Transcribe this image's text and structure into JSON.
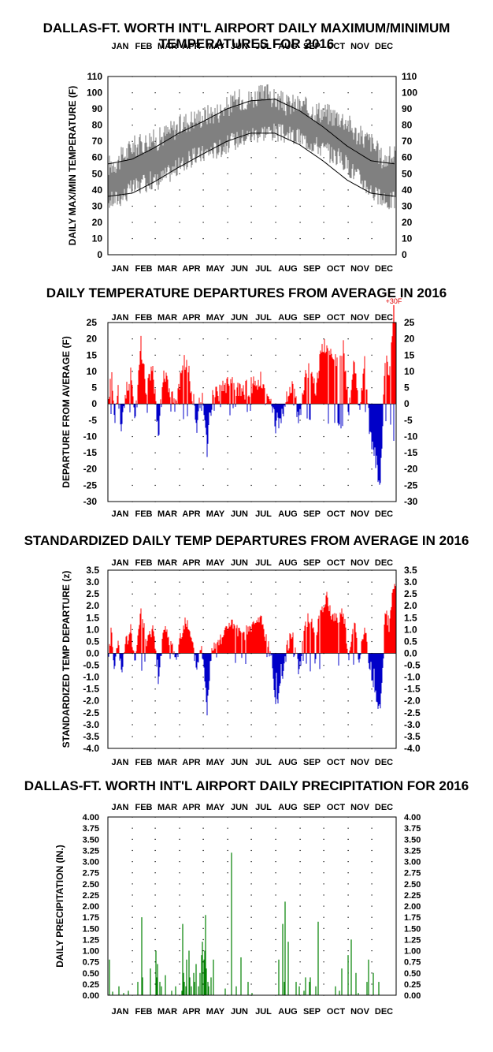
{
  "colors": {
    "max_min_band": "#808080",
    "normals_line": "#000000",
    "above_average": "#ff0000",
    "below_average": "#0000c8",
    "precip": "#008000",
    "grid_dots": "#000000"
  },
  "chart_data": [
    {
      "id": "temps",
      "type": "area",
      "title": "DALLAS-FT. WORTH INT'L AIRPORT DAILY MAXIMUM/MINIMUM",
      "subtitle": "TEMPERATURES FOR 2016",
      "ylabel": "DAILY MAX/MIN TEMPERATURE (F)",
      "months": [
        "JAN",
        "FEB",
        "MAR",
        "APR",
        "MAY",
        "JUN",
        "JUL",
        "AUG",
        "SEP",
        "OCT",
        "NOV",
        "DEC"
      ],
      "ylim": [
        0,
        110
      ],
      "yticks": [
        "110",
        "100",
        "90",
        "80",
        "70",
        "60",
        "50",
        "40",
        "30",
        "20",
        "10",
        "0"
      ],
      "grid": "dotted",
      "series": [
        {
          "kind": "daily_max_min_band",
          "color": "gray",
          "max_anchors": [
            [
              1,
              55
            ],
            [
              15,
              58
            ],
            [
              25,
              63
            ],
            [
              32,
              67
            ],
            [
              45,
              68
            ],
            [
              55,
              72
            ],
            [
              62,
              70
            ],
            [
              75,
              75
            ],
            [
              90,
              79
            ],
            [
              100,
              82
            ],
            [
              110,
              84
            ],
            [
              120,
              85
            ],
            [
              130,
              87
            ],
            [
              140,
              88
            ],
            [
              152,
              91
            ],
            [
              160,
              94
            ],
            [
              170,
              96
            ],
            [
              182,
              96
            ],
            [
              190,
              98
            ],
            [
              200,
              98
            ],
            [
              206,
              102
            ],
            [
              210,
              96
            ],
            [
              220,
              95
            ],
            [
              228,
              92
            ],
            [
              235,
              93
            ],
            [
              245,
              92
            ],
            [
              255,
              90
            ],
            [
              265,
              89
            ],
            [
              275,
              88
            ],
            [
              285,
              86
            ],
            [
              295,
              85
            ],
            [
              305,
              82
            ],
            [
              315,
              75
            ],
            [
              325,
              72
            ],
            [
              335,
              70
            ],
            [
              345,
              62
            ],
            [
              352,
              58
            ],
            [
              358,
              60
            ],
            [
              366,
              62
            ]
          ],
          "min_anchors": [
            [
              1,
              33
            ],
            [
              15,
              35
            ],
            [
              25,
              38
            ],
            [
              32,
              41
            ],
            [
              45,
              43
            ],
            [
              55,
              46
            ],
            [
              62,
              45
            ],
            [
              75,
              49
            ],
            [
              90,
              54
            ],
            [
              100,
              57
            ],
            [
              110,
              60
            ],
            [
              120,
              62
            ],
            [
              130,
              64
            ],
            [
              140,
              65
            ],
            [
              152,
              68
            ],
            [
              160,
              70
            ],
            [
              170,
              72
            ],
            [
              182,
              74
            ],
            [
              190,
              75
            ],
            [
              200,
              76
            ],
            [
              210,
              76
            ],
            [
              220,
              75
            ],
            [
              228,
              74
            ],
            [
              235,
              73
            ],
            [
              245,
              72
            ],
            [
              255,
              70
            ],
            [
              265,
              68
            ],
            [
              275,
              65
            ],
            [
              285,
              62
            ],
            [
              295,
              60
            ],
            [
              305,
              55
            ],
            [
              315,
              50
            ],
            [
              325,
              45
            ],
            [
              335,
              40
            ],
            [
              345,
              35
            ],
            [
              352,
              32
            ],
            [
              358,
              33
            ],
            [
              366,
              34
            ]
          ]
        },
        {
          "kind": "normal_high_line",
          "anchors": [
            [
              1,
              56
            ],
            [
              32,
              59
            ],
            [
              60,
              66
            ],
            [
              91,
              75
            ],
            [
              121,
              82
            ],
            [
              152,
              90
            ],
            [
              182,
              95
            ],
            [
              213,
              96
            ],
            [
              244,
              89
            ],
            [
              274,
              79
            ],
            [
              305,
              67
            ],
            [
              335,
              58
            ],
            [
              366,
              56
            ]
          ]
        },
        {
          "kind": "normal_low_line",
          "anchors": [
            [
              1,
              36
            ],
            [
              32,
              38
            ],
            [
              60,
              45
            ],
            [
              91,
              54
            ],
            [
              121,
              62
            ],
            [
              152,
              70
            ],
            [
              182,
              75
            ],
            [
              213,
              75
            ],
            [
              244,
              68
            ],
            [
              274,
              58
            ],
            [
              305,
              46
            ],
            [
              335,
              38
            ],
            [
              366,
              36
            ]
          ]
        }
      ]
    },
    {
      "id": "departures",
      "type": "bar",
      "title": "DAILY TEMPERATURE DEPARTURES FROM AVERAGE IN 2016",
      "ylabel": "DEPARTURE FROM AVERAGE (F)",
      "months": [
        "JAN",
        "FEB",
        "MAR",
        "APR",
        "MAY",
        "JUN",
        "JUL",
        "AUG",
        "SEP",
        "OCT",
        "NOV",
        "DEC"
      ],
      "ylim": [
        -30,
        25
      ],
      "yticks": [
        "25",
        "20",
        "15",
        "10",
        "5",
        "0",
        "-5",
        "-10",
        "-15",
        "-20",
        "-25",
        "-30"
      ],
      "grid": "dotted",
      "annotation": {
        "day": 364,
        "text": "+30F"
      },
      "anchors": [
        [
          1,
          -2
        ],
        [
          6,
          12
        ],
        [
          9,
          -8
        ],
        [
          14,
          6
        ],
        [
          18,
          -7
        ],
        [
          24,
          4
        ],
        [
          30,
          10
        ],
        [
          36,
          -5
        ],
        [
          43,
          18
        ],
        [
          50,
          3
        ],
        [
          58,
          12
        ],
        [
          65,
          -10
        ],
        [
          72,
          10
        ],
        [
          80,
          5
        ],
        [
          88,
          -2
        ],
        [
          93,
          8
        ],
        [
          100,
          14
        ],
        [
          107,
          5
        ],
        [
          114,
          -6
        ],
        [
          120,
          4
        ],
        [
          127,
          -14
        ],
        [
          133,
          2
        ],
        [
          140,
          3
        ],
        [
          148,
          5
        ],
        [
          156,
          7
        ],
        [
          163,
          5
        ],
        [
          170,
          3
        ],
        [
          180,
          5
        ],
        [
          188,
          6
        ],
        [
          195,
          8
        ],
        [
          202,
          3
        ],
        [
          209,
          -1
        ],
        [
          215,
          -8
        ],
        [
          222,
          -4
        ],
        [
          229,
          2
        ],
        [
          236,
          5
        ],
        [
          244,
          -5
        ],
        [
          251,
          8
        ],
        [
          258,
          12
        ],
        [
          265,
          5
        ],
        [
          272,
          16
        ],
        [
          279,
          19
        ],
        [
          286,
          12
        ],
        [
          293,
          14
        ],
        [
          300,
          18
        ],
        [
          307,
          -3
        ],
        [
          314,
          14
        ],
        [
          320,
          -2
        ],
        [
          327,
          12
        ],
        [
          334,
          -10
        ],
        [
          340,
          -16
        ],
        [
          347,
          -25
        ],
        [
          353,
          15
        ],
        [
          358,
          10
        ],
        [
          364,
          30
        ]
      ]
    },
    {
      "id": "standardized",
      "type": "bar",
      "title": "STANDARDIZED DAILY TEMP DEPARTURES FROM AVERAGE IN 2016",
      "ylabel": "STANDARDIZED TEMP DEPARTURE (z)",
      "months": [
        "JAN",
        "FEB",
        "MAR",
        "APR",
        "MAY",
        "JUN",
        "JUL",
        "AUG",
        "SEP",
        "OCT",
        "NOV",
        "DEC"
      ],
      "ylim": [
        -4.0,
        3.5
      ],
      "yticks": [
        "3.5",
        "3.0",
        "2.5",
        "2.0",
        "1.5",
        "1.0",
        "0.5",
        "0.0",
        "-0.5",
        "-1.0",
        "-1.5",
        "-2.0",
        "-2.5",
        "-3.0",
        "-3.5",
        "-4.0"
      ],
      "grid": "dotted",
      "anchors": [
        [
          1,
          -0.2
        ],
        [
          6,
          1.1
        ],
        [
          9,
          -0.8
        ],
        [
          14,
          0.6
        ],
        [
          18,
          -0.7
        ],
        [
          24,
          0.4
        ],
        [
          30,
          1.0
        ],
        [
          36,
          -0.5
        ],
        [
          43,
          2.0
        ],
        [
          50,
          0.3
        ],
        [
          58,
          1.2
        ],
        [
          65,
          -1.0
        ],
        [
          72,
          1.0
        ],
        [
          80,
          0.5
        ],
        [
          88,
          -0.2
        ],
        [
          93,
          0.8
        ],
        [
          100,
          1.4
        ],
        [
          107,
          0.5
        ],
        [
          114,
          -0.6
        ],
        [
          120,
          0.4
        ],
        [
          127,
          -2.4
        ],
        [
          133,
          0.3
        ],
        [
          140,
          0.5
        ],
        [
          148,
          0.8
        ],
        [
          156,
          1.3
        ],
        [
          163,
          1.0
        ],
        [
          170,
          0.7
        ],
        [
          180,
          1.0
        ],
        [
          188,
          1.2
        ],
        [
          195,
          1.5
        ],
        [
          202,
          0.6
        ],
        [
          209,
          -0.3
        ],
        [
          215,
          -2.2
        ],
        [
          222,
          -1.0
        ],
        [
          229,
          0.3
        ],
        [
          236,
          0.9
        ],
        [
          244,
          -0.8
        ],
        [
          251,
          1.2
        ],
        [
          258,
          1.6
        ],
        [
          265,
          0.8
        ],
        [
          272,
          1.9
        ],
        [
          279,
          2.3
        ],
        [
          286,
          1.5
        ],
        [
          293,
          1.5
        ],
        [
          300,
          1.8
        ],
        [
          307,
          -0.4
        ],
        [
          314,
          1.5
        ],
        [
          320,
          -0.3
        ],
        [
          327,
          1.2
        ],
        [
          334,
          -0.9
        ],
        [
          340,
          -1.6
        ],
        [
          347,
          -2.5
        ],
        [
          353,
          1.7
        ],
        [
          358,
          1.2
        ],
        [
          364,
          3.0
        ]
      ]
    },
    {
      "id": "precip",
      "type": "bar",
      "title": "DALLAS-FT. WORTH INT'L AIRPORT DAILY PRECIPITATION FOR 2016",
      "ylabel": "DAILY PRECIPITATION (IN.)",
      "months": [
        "JAN",
        "FEB",
        "MAR",
        "APR",
        "MAY",
        "JUN",
        "JUL",
        "AUG",
        "SEP",
        "OCT",
        "NOV",
        "DEC"
      ],
      "ylim": [
        0,
        4.0
      ],
      "yticks": [
        "4.00",
        "3.75",
        "3.50",
        "3.25",
        "3.00",
        "2.75",
        "2.50",
        "2.25",
        "2.00",
        "1.75",
        "1.50",
        "1.25",
        "1.00",
        "0.75",
        "0.50",
        "0.25",
        "0.00"
      ],
      "grid": "dotted",
      "days": [
        3,
        7,
        15,
        21,
        27,
        39,
        44,
        45,
        55,
        62,
        63,
        64,
        67,
        69,
        74,
        82,
        87,
        95,
        96,
        97,
        98,
        100,
        101,
        104,
        105,
        107,
        110,
        111,
        113,
        116,
        118,
        120,
        121,
        123,
        124,
        125,
        126,
        128,
        129,
        132,
        135,
        150,
        158,
        164,
        170,
        179,
        184,
        218,
        223,
        225,
        226,
        230,
        240,
        244,
        250,
        252,
        257,
        258,
        265,
        268,
        290,
        295,
        298,
        306,
        310,
        316,
        319,
        330,
        332,
        338,
        345
      ],
      "values": [
        0.8,
        0.08,
        0.2,
        0.05,
        0.1,
        0.3,
        1.75,
        0.4,
        0.6,
        1.0,
        0.4,
        0.7,
        0.3,
        0.2,
        0.45,
        0.1,
        0.2,
        0.1,
        1.6,
        0.5,
        0.3,
        0.2,
        0.8,
        1.0,
        0.4,
        0.2,
        0.5,
        0.3,
        0.7,
        0.2,
        0.5,
        0.9,
        1.2,
        0.8,
        1.0,
        1.8,
        0.6,
        0.3,
        0.2,
        0.4,
        0.8,
        0.15,
        3.2,
        0.2,
        0.85,
        0.3,
        0.05,
        0.8,
        1.6,
        0.3,
        2.1,
        1.2,
        0.3,
        0.2,
        0.1,
        0.4,
        0.3,
        0.4,
        0.2,
        1.65,
        0.2,
        0.1,
        0.6,
        0.9,
        1.25,
        0.5,
        0.05,
        0.3,
        0.8,
        0.5,
        0.3
      ]
    }
  ]
}
